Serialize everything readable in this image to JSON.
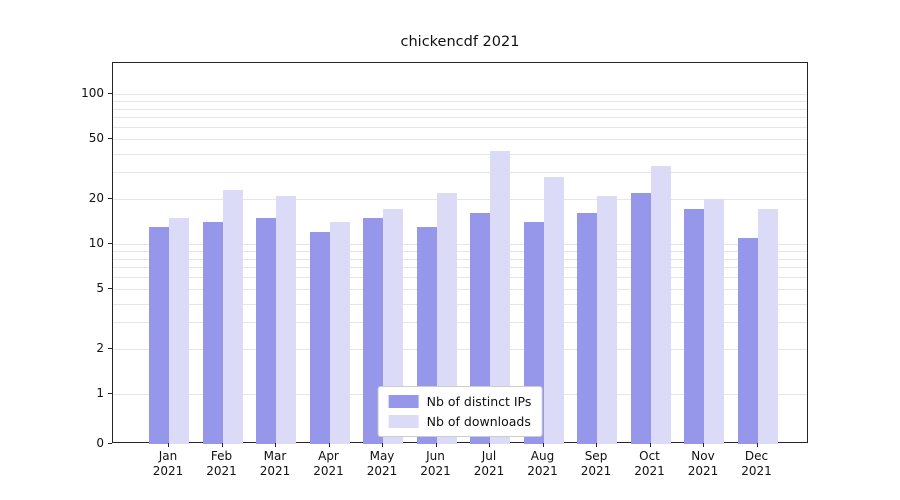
{
  "chart_data": {
    "type": "bar",
    "title": "chickencdf 2021",
    "xlabel": "",
    "ylabel": "",
    "yscale": "symlog",
    "ylim": [
      0,
      160
    ],
    "grid": true,
    "yticks": [
      100,
      50,
      20,
      10,
      5,
      2,
      1,
      0
    ],
    "grid_values": [
      1,
      2,
      3,
      4,
      5,
      6,
      7,
      8,
      9,
      10,
      20,
      30,
      40,
      50,
      60,
      70,
      80,
      90,
      100
    ],
    "categories": [
      "Jan 2021",
      "Feb 2021",
      "Mar 2021",
      "Apr 2021",
      "May 2021",
      "Jun 2021",
      "Jul 2021",
      "Aug 2021",
      "Sep 2021",
      "Oct 2021",
      "Nov 2021",
      "Dec 2021"
    ],
    "x_tick_labels": [
      [
        "Jan",
        "2021"
      ],
      [
        "Feb",
        "2021"
      ],
      [
        "Mar",
        "2021"
      ],
      [
        "Apr",
        "2021"
      ],
      [
        "May",
        "2021"
      ],
      [
        "Jun",
        "2021"
      ],
      [
        "Jul",
        "2021"
      ],
      [
        "Aug",
        "2021"
      ],
      [
        "Sep",
        "2021"
      ],
      [
        "Oct",
        "2021"
      ],
      [
        "Nov",
        "2021"
      ],
      [
        "Dec",
        "2021"
      ]
    ],
    "series": [
      {
        "name": "Nb of distinct IPs",
        "color": "#9697ea",
        "values": [
          13,
          14,
          15,
          12,
          15,
          13,
          16,
          14,
          16,
          22,
          17,
          11
        ]
      },
      {
        "name": "Nb of downloads",
        "color": "#dbdbf8",
        "values": [
          15,
          23,
          21,
          14,
          17,
          22,
          42,
          28,
          21,
          33,
          20,
          17
        ]
      }
    ],
    "legend": {
      "position": "lower center",
      "labels": [
        "Nb of distinct IPs",
        "Nb of downloads"
      ]
    },
    "colors": {
      "grid": "#e6e6e6",
      "spine": "#262626",
      "background": "#ffffff",
      "legend_border": "#cccccc"
    }
  }
}
